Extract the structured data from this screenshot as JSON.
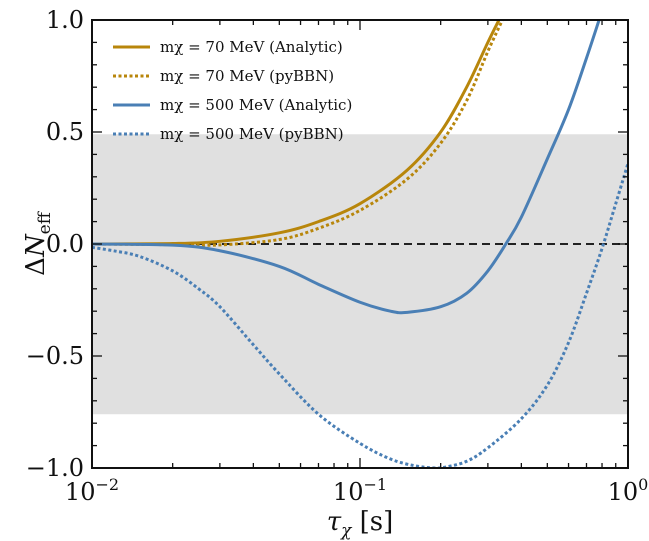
{
  "chart_data": {
    "type": "line",
    "xlabel": "τχ [s]",
    "ylabel": "ΔNeff",
    "xscale": "log",
    "xlim": [
      0.01,
      1.0
    ],
    "ylim": [
      -1.0,
      1.0
    ],
    "x_ticks": [
      {
        "value": 0.01,
        "base": "10",
        "exp": "−2"
      },
      {
        "value": 0.1,
        "base": "10",
        "exp": "−1"
      },
      {
        "value": 1.0,
        "base": "10",
        "exp": "0"
      }
    ],
    "y_ticks": [
      {
        "value": 1.0,
        "label": "1.0"
      },
      {
        "value": 0.5,
        "label": "0.5"
      },
      {
        "value": 0.0,
        "label": "0.0"
      },
      {
        "value": -0.5,
        "label": "−0.5"
      },
      {
        "value": -1.0,
        "label": "−1.0"
      }
    ],
    "shaded_band": {
      "ymin": -0.76,
      "ymax": 0.49,
      "color": "#e0e0e0"
    },
    "reference_line": {
      "y": 0.0,
      "style": "dashed",
      "color": "#222222"
    },
    "legend_placement": "top-left",
    "series": [
      {
        "name": "mχ = 70 MeV (Analytic)",
        "color": "#b8860b",
        "style": "solid",
        "x": [
          0.01,
          0.02,
          0.03,
          0.05,
          0.07,
          0.1,
          0.15,
          0.2,
          0.25,
          0.3,
          0.33
        ],
        "y": [
          0.0,
          0.002,
          0.012,
          0.05,
          0.1,
          0.18,
          0.33,
          0.5,
          0.7,
          0.9,
          1.0
        ]
      },
      {
        "name": "mχ = 70 MeV (pyBBN)",
        "color": "#b8860b",
        "style": "dotted",
        "x": [
          0.01,
          0.02,
          0.03,
          0.05,
          0.07,
          0.1,
          0.15,
          0.2,
          0.25,
          0.3,
          0.34
        ],
        "y": [
          0.0,
          -0.003,
          -0.004,
          0.02,
          0.07,
          0.15,
          0.29,
          0.45,
          0.64,
          0.86,
          1.0
        ]
      },
      {
        "name": "mχ = 500 MeV (Analytic)",
        "color": "#4a7fb5",
        "style": "solid",
        "x": [
          0.01,
          0.02,
          0.03,
          0.05,
          0.07,
          0.1,
          0.13,
          0.15,
          0.2,
          0.25,
          0.3,
          0.35,
          0.4,
          0.5,
          0.6,
          0.7,
          0.78
        ],
        "y": [
          0.0,
          -0.005,
          -0.03,
          -0.1,
          -0.18,
          -0.26,
          -0.3,
          -0.305,
          -0.28,
          -0.22,
          -0.12,
          0.0,
          0.12,
          0.38,
          0.6,
          0.83,
          1.0
        ]
      },
      {
        "name": "mχ = 500 MeV (pyBBN)",
        "color": "#4a7fb5",
        "style": "dotted",
        "x": [
          0.01,
          0.012,
          0.015,
          0.02,
          0.025,
          0.03,
          0.04,
          0.05,
          0.07,
          0.1,
          0.13,
          0.16,
          0.19,
          0.21,
          0.25,
          0.3,
          0.4,
          0.5,
          0.6,
          0.7,
          0.8,
          0.9,
          1.0
        ],
        "y": [
          -0.015,
          -0.03,
          -0.055,
          -0.12,
          -0.2,
          -0.28,
          -0.45,
          -0.58,
          -0.76,
          -0.89,
          -0.96,
          -0.99,
          -1.0,
          -0.995,
          -0.97,
          -0.91,
          -0.78,
          -0.63,
          -0.44,
          -0.22,
          -0.02,
          0.18,
          0.36
        ]
      }
    ]
  }
}
